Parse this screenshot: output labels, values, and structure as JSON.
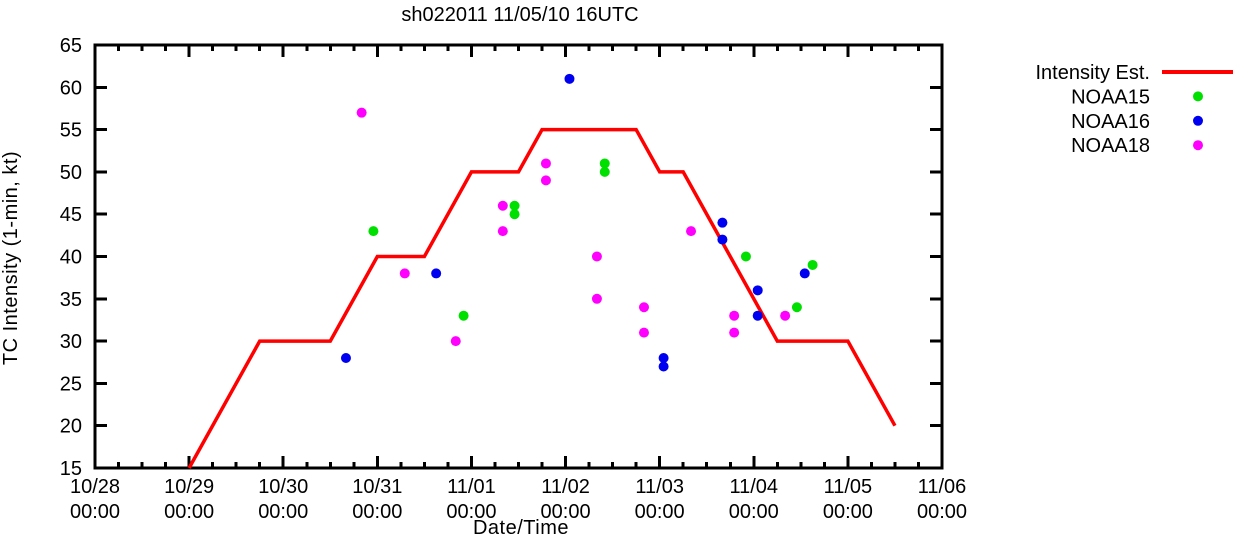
{
  "page": {
    "title": "sh022011 11/05/10 16UTC"
  },
  "chart_data": {
    "type": "line",
    "title": "sh022011 11/05/10 16UTC",
    "xlabel": "Date/Time",
    "ylabel": "TC Intensity (1-min, kt)",
    "x_unit": "hours since 10/28 00:00",
    "xlim_hours": [
      0,
      216
    ],
    "ylim": [
      15,
      65
    ],
    "grid": false,
    "legend_position": "outside-top-right",
    "y_ticks": [
      15,
      20,
      25,
      30,
      35,
      40,
      45,
      50,
      55,
      60,
      65
    ],
    "x_minor_tick_step_hours": 6,
    "x_ticks": [
      {
        "hour": 0,
        "date": "10/28",
        "time": "00:00"
      },
      {
        "hour": 24,
        "date": "10/29",
        "time": "00:00"
      },
      {
        "hour": 48,
        "date": "10/30",
        "time": "00:00"
      },
      {
        "hour": 72,
        "date": "10/31",
        "time": "00:00"
      },
      {
        "hour": 96,
        "date": "11/01",
        "time": "00:00"
      },
      {
        "hour": 120,
        "date": "11/02",
        "time": "00:00"
      },
      {
        "hour": 144,
        "date": "11/03",
        "time": "00:00"
      },
      {
        "hour": 168,
        "date": "11/04",
        "time": "00:00"
      },
      {
        "hour": 192,
        "date": "11/05",
        "time": "00:00"
      },
      {
        "hour": 216,
        "date": "11/06",
        "time": "00:00"
      }
    ],
    "series": [
      {
        "name": "Intensity Est.",
        "kind": "line",
        "color": "#ff0000",
        "points": [
          [
            24,
            15
          ],
          [
            42,
            30
          ],
          [
            60,
            30
          ],
          [
            72,
            40
          ],
          [
            84,
            40
          ],
          [
            96,
            50
          ],
          [
            108,
            50
          ],
          [
            114,
            55
          ],
          [
            138,
            55
          ],
          [
            144,
            50
          ],
          [
            150,
            50
          ],
          [
            174,
            30
          ],
          [
            192,
            30
          ],
          [
            204,
            20
          ]
        ]
      },
      {
        "name": "NOAA15",
        "kind": "scatter",
        "color": "#00e000",
        "points": [
          [
            71,
            43
          ],
          [
            94,
            33
          ],
          [
            107,
            46
          ],
          [
            107,
            45
          ],
          [
            130,
            51
          ],
          [
            130,
            50
          ],
          [
            166,
            40
          ],
          [
            179,
            34
          ],
          [
            183,
            39
          ]
        ]
      },
      {
        "name": "NOAA16",
        "kind": "scatter",
        "color": "#0000f0",
        "points": [
          [
            64,
            28
          ],
          [
            87,
            38
          ],
          [
            121,
            61
          ],
          [
            145,
            28
          ],
          [
            145,
            27
          ],
          [
            160,
            44
          ],
          [
            160,
            42
          ],
          [
            169,
            36
          ],
          [
            169,
            33
          ],
          [
            181,
            38
          ]
        ]
      },
      {
        "name": "NOAA18",
        "kind": "scatter",
        "color": "#ff00ff",
        "points": [
          [
            68,
            57
          ],
          [
            79,
            38
          ],
          [
            92,
            30
          ],
          [
            104,
            46
          ],
          [
            104,
            43
          ],
          [
            115,
            51
          ],
          [
            115,
            49
          ],
          [
            128,
            40
          ],
          [
            128,
            35
          ],
          [
            140,
            34
          ],
          [
            140,
            31
          ],
          [
            152,
            43
          ],
          [
            163,
            33
          ],
          [
            163,
            31
          ],
          [
            176,
            33
          ]
        ]
      }
    ]
  }
}
